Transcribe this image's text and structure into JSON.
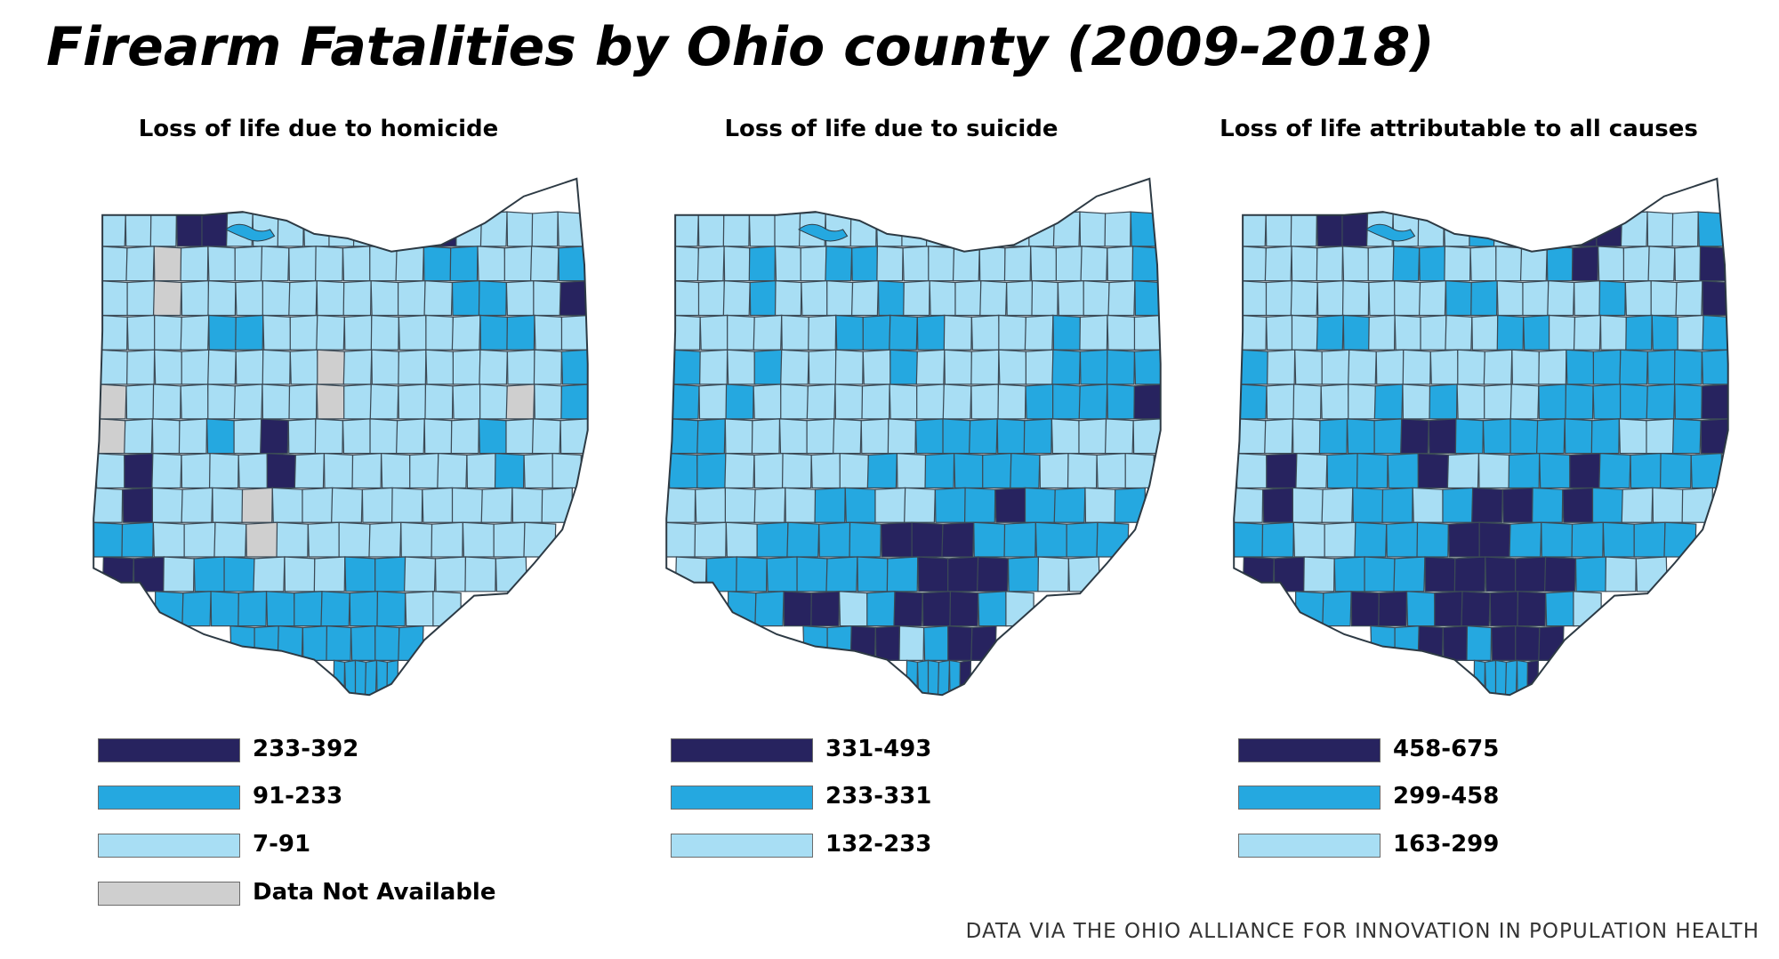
{
  "title": "Firearm Fatalities by Ohio county (2009-2018)",
  "source": "DATA VIA THE OHIO ALLIANCE FOR INNOVATION IN POPULATION HEALTH",
  "colors": {
    "high": "#27235f",
    "mid": "#25a8e0",
    "low": "#a8def4",
    "na": "#cfcfcf",
    "lake": "#25a8e0"
  },
  "maps": [
    {
      "title": "Loss of life due to homicide",
      "legend": [
        {
          "label": "233-392",
          "class": "high"
        },
        {
          "label": "91-233",
          "class": "mid"
        },
        {
          "label": "7-91",
          "class": "low"
        },
        {
          "label": "Data Not Available",
          "class": "na"
        }
      ],
      "grid": [
        "LLLHHLLLLLLLMHLLLLL",
        "LLNLLLLLLLLLMMLLLM",
        "LLNLLLLLLLLLLMMLLH",
        "LLLLMMLLLLLLLLMMLL",
        "LLLLLLLLNLLLLLLLLM",
        "NLLLLLLLNLLLLLLNLM",
        "NLLLMLHLLLLLLLMLLL",
        "LHLLLLHLLLLLLLMLL",
        "LHLLLNLLLLLLLLLL",
        "MMLLLNLLLLLLLLL",
        "HHLMMLLLMMLLLL",
        "MMMMMMMMMLL",
        "MMMMMMMM",
        "MMMMMM"
      ]
    },
    {
      "title": "Loss of life due to suicide",
      "legend": [
        {
          "label": "331-493",
          "class": "high"
        },
        {
          "label": "233-331",
          "class": "mid"
        },
        {
          "label": "132-233",
          "class": "low"
        }
      ],
      "grid": [
        "LLLLLLLLLLLLLLLLLLM",
        "LLLMLLMMLLLLLLLLLLM",
        "LLLMLLLLMLLLLLLLLLM",
        "LLLLLLMMMMLLLLMLLL",
        "MLLMLLLLMLLLLLMMMM",
        "MLMLLLLLLLLLLMMMMH",
        "MMLLLLLLLMMMMMLLLL",
        "MMLLLLLMLMMMMLLLL",
        "LLLLLMMLLMMHMMLM",
        "LLLMMMMHHHMMMMM",
        "LMMMMMMMHHHMLL",
        "MMHHLMHHHML",
        "MMHHLMHH",
        "MMMMMH"
      ]
    },
    {
      "title": "Loss of life attributable to all causes",
      "legend": [
        {
          "label": "458-675",
          "class": "high"
        },
        {
          "label": "299-458",
          "class": "mid"
        },
        {
          "label": "163-299",
          "class": "low"
        }
      ],
      "grid": [
        "LLLHHLLLLMLLLHHLLLM",
        "LLLLLLMMLLLLMHLLLLH",
        "LLLLLLLLMMLLLLMLLLH",
        "LLLMMLLLLLMMLLLMMLM",
        "MLLLLLLLLLLLMMMMMM",
        "MLLLLMLMLLLMMMMMMH",
        "LLLMMMHHMMMMMMLLMH",
        "LHLMMMHLLMMHMMMM",
        "LHLLMMLMHHMHMLLL",
        "MMLLMMMHHMMMMMM",
        "HHLMMMHHHHHMLL",
        "MMHHMHHHHML",
        "MMHHMHHH",
        "MMMMMH"
      ]
    }
  ]
}
